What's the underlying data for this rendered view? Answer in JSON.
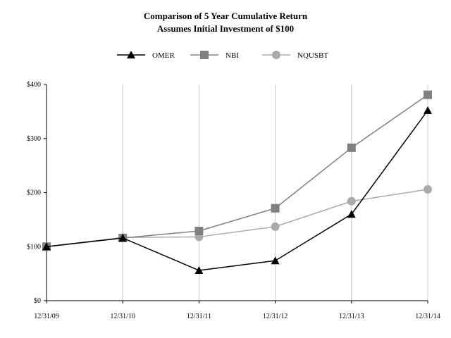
{
  "chart_data": {
    "type": "line",
    "title": "Comparison of 5 Year Cumulative Return",
    "subtitle": "Assumes Initial Investment of $100",
    "xlabel": "",
    "ylabel": "",
    "categories": [
      "12/31/09",
      "12/31/10",
      "12/31/11",
      "12/31/12",
      "12/31/13",
      "12/31/14"
    ],
    "ylim": [
      0,
      400
    ],
    "yticks": [
      0,
      100,
      200,
      300,
      400
    ],
    "ytick_labels": [
      "$0",
      "$100",
      "$200",
      "$300",
      "$400"
    ],
    "grid": "vertical",
    "legend_position": "top-center",
    "series": [
      {
        "name": "OMER",
        "values": [
          100,
          116,
          56,
          74,
          160,
          352
        ],
        "color": "#000000",
        "marker": "triangle"
      },
      {
        "name": "NBI",
        "values": [
          100,
          116,
          129,
          171,
          283,
          381
        ],
        "color": "#808080",
        "marker": "square"
      },
      {
        "name": "NQUSBT",
        "values": [
          100,
          117,
          118,
          137,
          184,
          206
        ],
        "color": "#aaaaaa",
        "marker": "circle"
      }
    ]
  }
}
